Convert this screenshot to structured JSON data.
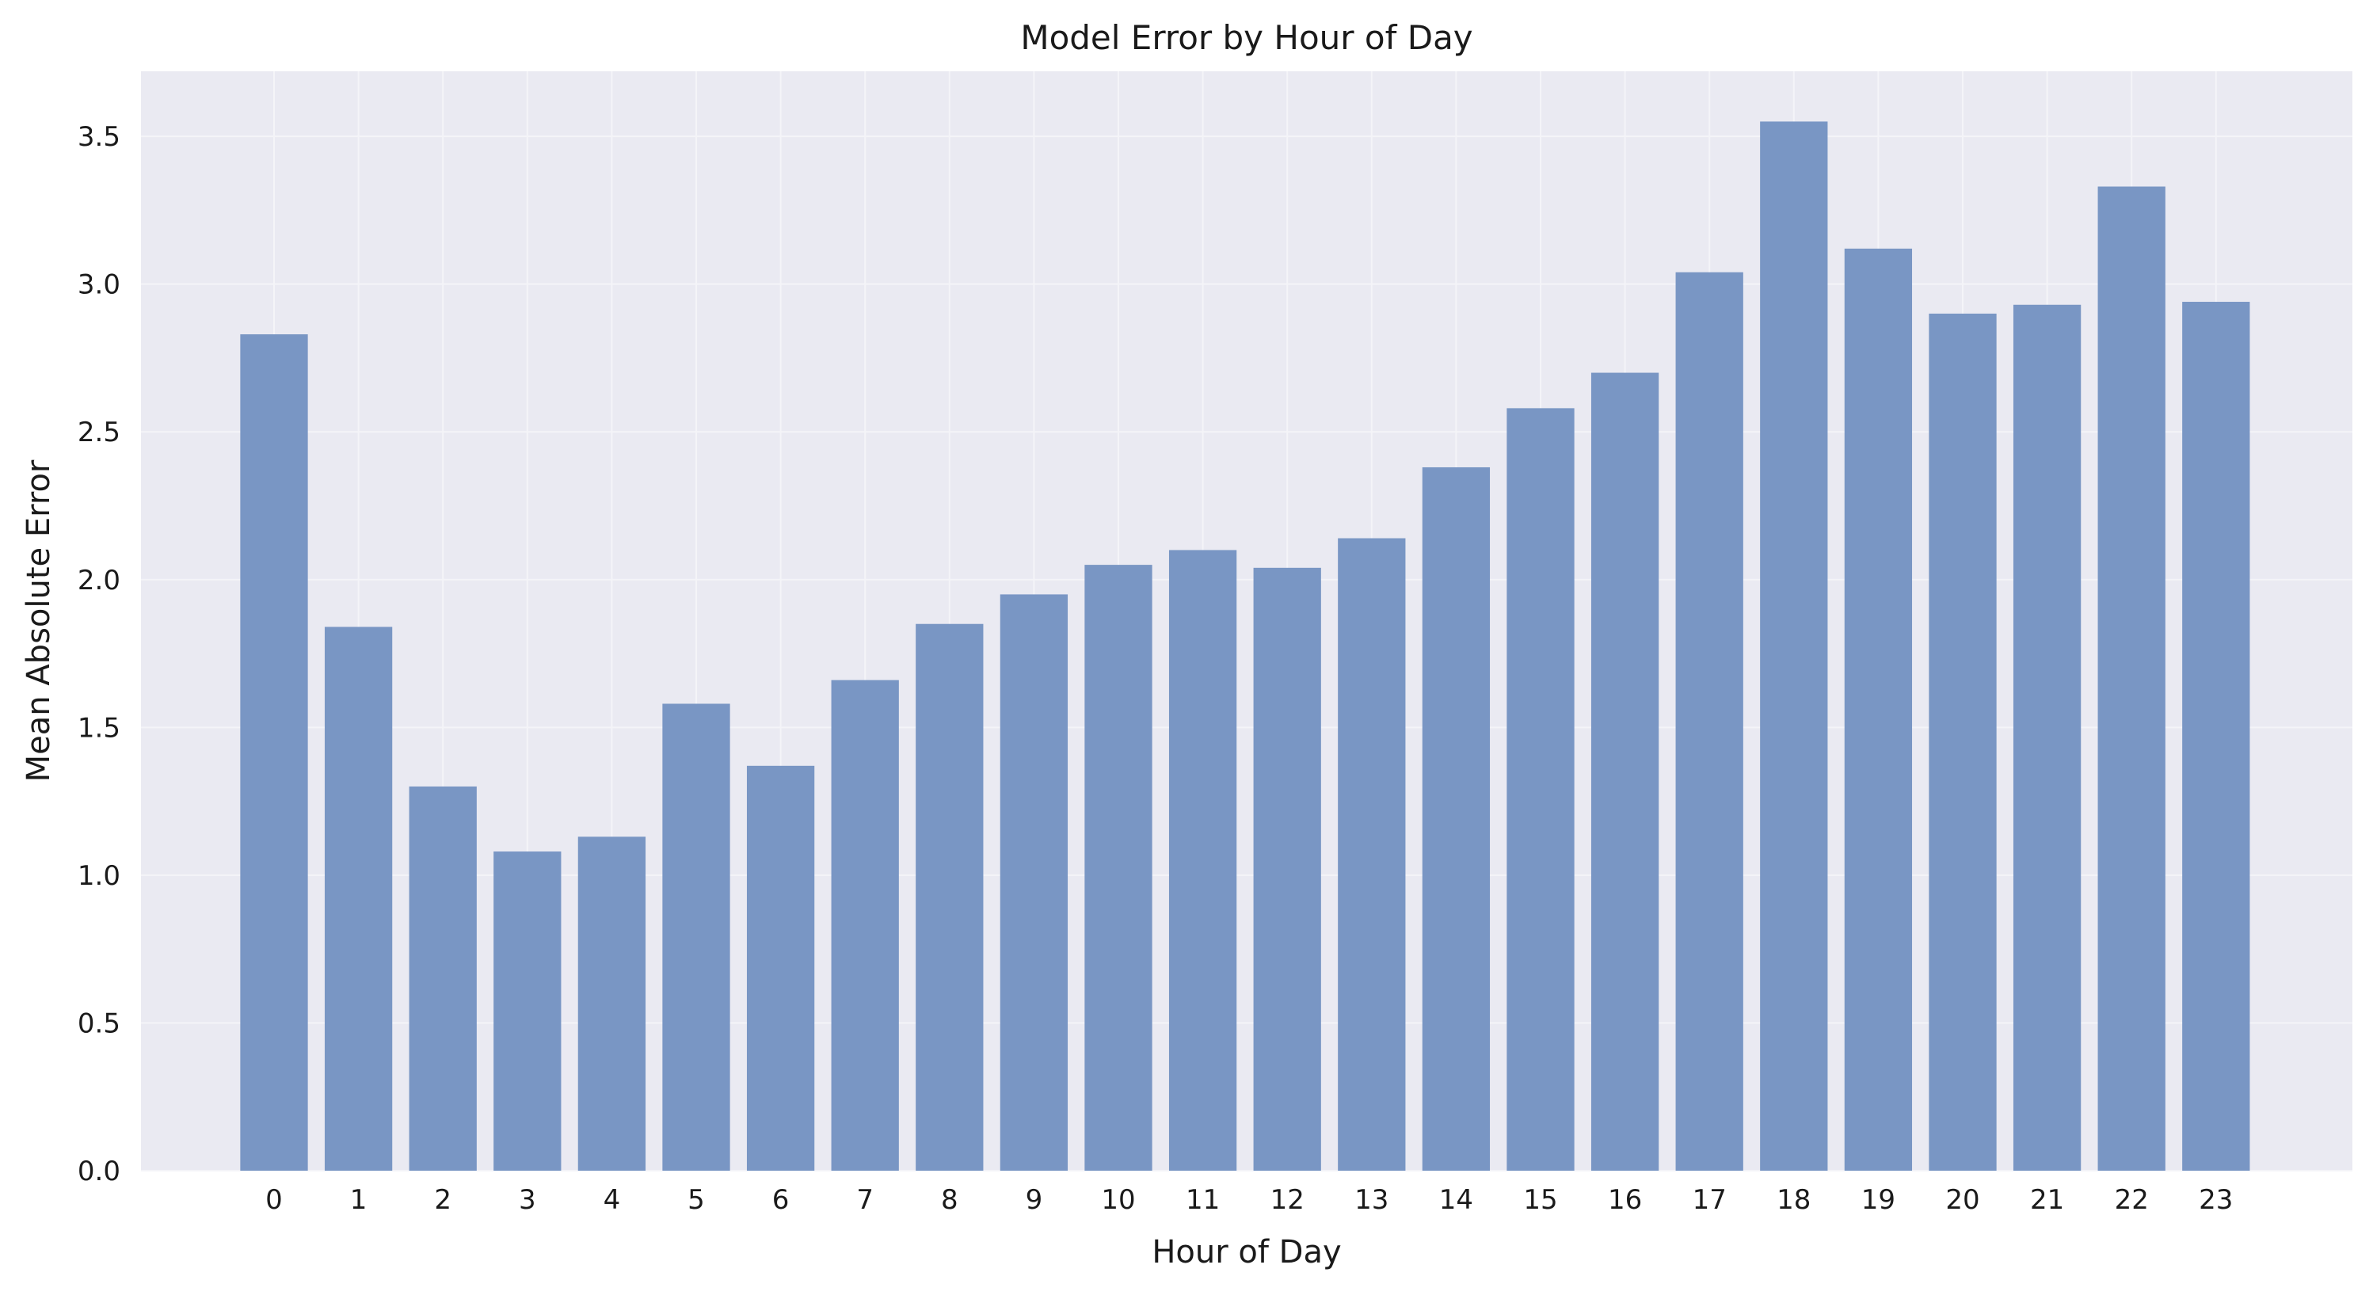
{
  "chart_data": {
    "type": "bar",
    "title": "Model Error by Hour of Day",
    "xlabel": "Hour of Day",
    "ylabel": "Mean Absolute Error",
    "categories": [
      "0",
      "1",
      "2",
      "3",
      "4",
      "5",
      "6",
      "7",
      "8",
      "9",
      "10",
      "11",
      "12",
      "13",
      "14",
      "15",
      "16",
      "17",
      "18",
      "19",
      "20",
      "21",
      "22",
      "23"
    ],
    "values": [
      2.83,
      1.84,
      1.3,
      1.08,
      1.13,
      1.58,
      1.37,
      1.66,
      1.85,
      1.95,
      2.05,
      2.1,
      2.04,
      2.14,
      2.38,
      2.58,
      2.7,
      3.04,
      3.55,
      3.12,
      2.9,
      2.93,
      3.33,
      2.94
    ],
    "ylim": [
      0,
      3.72
    ],
    "yticks": [
      "0.0",
      "0.5",
      "1.0",
      "1.5",
      "2.0",
      "2.5",
      "3.0",
      "3.5"
    ],
    "grid": true,
    "legend": "none",
    "colors": {
      "bar": "#7996c4",
      "plot_background": "#eaeaf2",
      "grid": "#f4f4f8"
    }
  }
}
